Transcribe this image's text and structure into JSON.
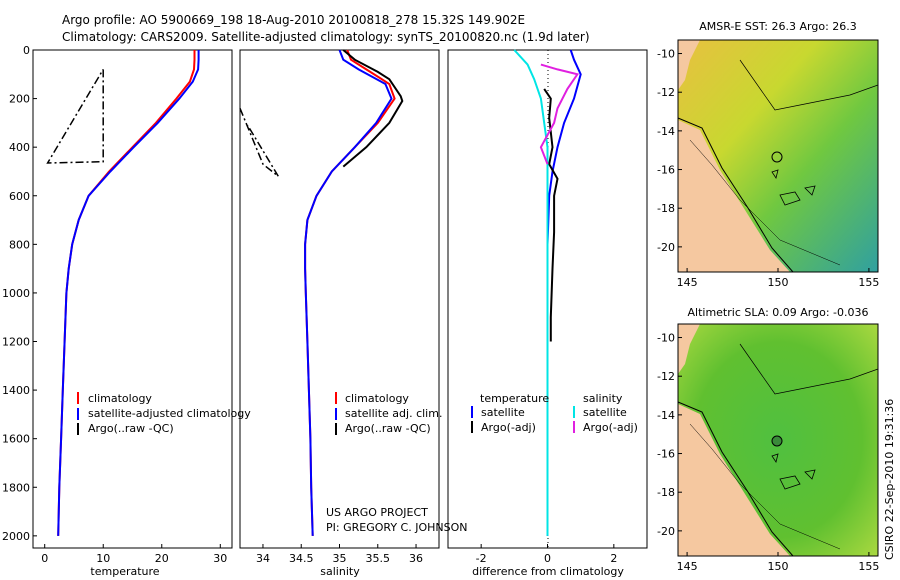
{
  "header": {
    "line1": "Argo profile: AO 5900669_198 18-Aug-2010 20100818_278 15.32S 149.902E",
    "line2": "Climatology: CARS2009. Satellite-adjusted climatology: synTS_20100820.nc (1.9d later)"
  },
  "credits": {
    "project": "US ARGO PROJECT",
    "pi": "PI: GREGORY C. JOHNSON",
    "stamp": "CSIRO 22-Sep-2010 19:31:36"
  },
  "colors": {
    "clim": "#ff0000",
    "sat": "#0000ff",
    "argo": "#000000",
    "sat_sal": "#00e5e5",
    "argo_sal": "#e020e0"
  },
  "chart_data": [
    {
      "type": "line",
      "name": "temperature",
      "xlabel": "temperature",
      "ylabel": "",
      "xlim": [
        -2,
        32
      ],
      "ylim": [
        2050,
        0
      ],
      "xticks": [
        0,
        10,
        20,
        30
      ],
      "yticks": [
        0,
        200,
        400,
        600,
        800,
        1000,
        1200,
        1400,
        1600,
        1800,
        2000
      ],
      "legend": [
        "climatology",
        "satellite-adjusted climatology",
        "Argo(..raw -QC)"
      ],
      "series": [
        {
          "name": "climatology",
          "color": "clim",
          "points": [
            [
              25.6,
              0
            ],
            [
              25.6,
              40
            ],
            [
              25.5,
              80
            ],
            [
              24.8,
              130
            ],
            [
              22.5,
              200
            ],
            [
              19,
              300
            ],
            [
              15,
              400
            ],
            [
              11,
              500
            ],
            [
              7.5,
              600
            ],
            [
              5.8,
              700
            ],
            [
              4.7,
              800
            ],
            [
              4.1,
              900
            ],
            [
              3.7,
              1000
            ],
            [
              3.4,
              1200
            ],
            [
              3.1,
              1400
            ],
            [
              2.8,
              1600
            ],
            [
              2.5,
              1800
            ],
            [
              2.3,
              2000
            ]
          ]
        },
        {
          "name": "satellite-adjusted climatology",
          "color": "sat",
          "points": [
            [
              26.3,
              0
            ],
            [
              26.3,
              40
            ],
            [
              26.2,
              80
            ],
            [
              25.3,
              130
            ],
            [
              23,
              200
            ],
            [
              19.3,
              300
            ],
            [
              15.2,
              400
            ],
            [
              11.2,
              500
            ],
            [
              7.5,
              600
            ],
            [
              5.8,
              700
            ],
            [
              4.7,
              800
            ],
            [
              4.1,
              900
            ],
            [
              3.7,
              1000
            ],
            [
              3.4,
              1200
            ],
            [
              3.1,
              1400
            ],
            [
              2.8,
              1600
            ],
            [
              2.5,
              1800
            ],
            [
              2.3,
              2000
            ]
          ]
        },
        {
          "name": "Argo raw",
          "color": "argo",
          "dash": true,
          "points": [
            [
              10,
              80
            ],
            [
              10,
              460
            ],
            [
              0.5,
              465
            ],
            [
              10,
              80
            ]
          ]
        }
      ]
    },
    {
      "type": "line",
      "name": "salinity",
      "xlabel": "salinity",
      "xlim": [
        33.7,
        36.3
      ],
      "ylim": [
        2050,
        0
      ],
      "xticks": [
        34,
        34.5,
        35,
        35.5,
        36
      ],
      "legend": [
        "climatology",
        "satellite adj. clim.",
        "Argo(..raw -QC)"
      ],
      "series": [
        {
          "name": "climatology",
          "color": "clim",
          "points": [
            [
              35.1,
              0
            ],
            [
              35.15,
              40
            ],
            [
              35.35,
              80
            ],
            [
              35.65,
              140
            ],
            [
              35.72,
              200
            ],
            [
              35.5,
              300
            ],
            [
              35.2,
              400
            ],
            [
              34.9,
              500
            ],
            [
              34.7,
              600
            ],
            [
              34.58,
              700
            ],
            [
              34.55,
              800
            ],
            [
              34.55,
              900
            ],
            [
              34.56,
              1000
            ],
            [
              34.58,
              1200
            ],
            [
              34.6,
              1400
            ],
            [
              34.62,
              1600
            ],
            [
              34.63,
              1800
            ],
            [
              34.65,
              2000
            ]
          ]
        },
        {
          "name": "satellite adj. clim.",
          "color": "sat",
          "points": [
            [
              35.0,
              0
            ],
            [
              35.05,
              40
            ],
            [
              35.25,
              80
            ],
            [
              35.6,
              140
            ],
            [
              35.68,
              200
            ],
            [
              35.48,
              300
            ],
            [
              35.2,
              400
            ],
            [
              34.9,
              500
            ],
            [
              34.7,
              600
            ],
            [
              34.58,
              700
            ],
            [
              34.55,
              800
            ],
            [
              34.55,
              900
            ],
            [
              34.56,
              1000
            ],
            [
              34.58,
              1200
            ],
            [
              34.6,
              1400
            ],
            [
              34.62,
              1600
            ],
            [
              34.63,
              1800
            ],
            [
              34.65,
              2000
            ]
          ]
        },
        {
          "name": "Argo",
          "color": "argo",
          "points": [
            [
              35.05,
              0
            ],
            [
              35.2,
              40
            ],
            [
              35.5,
              90
            ],
            [
              35.65,
              120
            ],
            [
              35.8,
              190
            ],
            [
              35.82,
              210
            ],
            [
              35.65,
              300
            ],
            [
              35.35,
              400
            ],
            [
              35.05,
              480
            ]
          ]
        },
        {
          "name": "Argo raw",
          "color": "argo",
          "dash": true,
          "points": [
            [
              33.7,
              240
            ],
            [
              34.0,
              470
            ],
            [
              34.2,
              520
            ],
            [
              33.8,
              310
            ]
          ]
        }
      ]
    },
    {
      "type": "line",
      "name": "difference",
      "xlabel": "difference from climatology",
      "xlim": [
        -3,
        3
      ],
      "ylim": [
        2050,
        0
      ],
      "xticks": [
        -2,
        0,
        2
      ],
      "legend_temperature": [
        "temperature",
        "satellite",
        "Argo(-adj)"
      ],
      "legend_salinity": [
        "salinity",
        "satellite",
        "Argo(-adj)"
      ],
      "series": [
        {
          "name": "temperature satellite",
          "color": "sat",
          "points": [
            [
              0.7,
              0
            ],
            [
              0.8,
              40
            ],
            [
              1.0,
              100
            ],
            [
              0.8,
              200
            ],
            [
              0.5,
              300
            ],
            [
              0.3,
              400
            ],
            [
              0.15,
              500
            ],
            [
              0.05,
              600
            ],
            [
              0.0,
              800
            ],
            [
              0.0,
              1000
            ],
            [
              0.0,
              1200
            ],
            [
              0.0,
              1400
            ],
            [
              0.0,
              1600
            ],
            [
              0.0,
              1800
            ],
            [
              0.0,
              2000
            ]
          ]
        },
        {
          "name": "temperature Argo",
          "color": "argo",
          "points": [
            [
              -0.1,
              160
            ],
            [
              0.1,
              200
            ],
            [
              0.05,
              280
            ],
            [
              0.15,
              400
            ],
            [
              0.05,
              470
            ],
            [
              0.3,
              530
            ],
            [
              0.2,
              600
            ],
            [
              0.2,
              750
            ],
            [
              0.15,
              900
            ],
            [
              0.1,
              1100
            ],
            [
              0.1,
              1200
            ]
          ]
        },
        {
          "name": "salinity satellite",
          "color": "sat_sal",
          "points": [
            [
              -1.0,
              0
            ],
            [
              -0.6,
              60
            ],
            [
              -0.4,
              120
            ],
            [
              -0.2,
              200
            ],
            [
              0.0,
              400
            ],
            [
              0.0,
              600
            ],
            [
              0.0,
              1000
            ],
            [
              0.0,
              1500
            ],
            [
              0.0,
              2000
            ]
          ]
        },
        {
          "name": "salinity Argo",
          "color": "argo_sal",
          "points": [
            [
              -0.2,
              60
            ],
            [
              0.3,
              80
            ],
            [
              0.9,
              100
            ],
            [
              0.6,
              160
            ],
            [
              0.3,
              240
            ],
            [
              0.2,
              300
            ],
            [
              -0.2,
              400
            ],
            [
              0.0,
              470
            ]
          ]
        }
      ]
    },
    {
      "type": "heatmap",
      "name": "sst-map",
      "title": "AMSR-E SST: 26.3 Argo: 26.3",
      "xticks": [
        145,
        150,
        155
      ],
      "yticks": [
        -10,
        -12,
        -14,
        -16,
        -18,
        -20
      ]
    },
    {
      "type": "heatmap",
      "name": "sla-map",
      "title": "Altimetric SLA: 0.09 Argo: -0.036",
      "xticks": [
        145,
        150,
        155
      ],
      "yticks": [
        -10,
        -12,
        -14,
        -16,
        -18,
        -20
      ]
    }
  ]
}
